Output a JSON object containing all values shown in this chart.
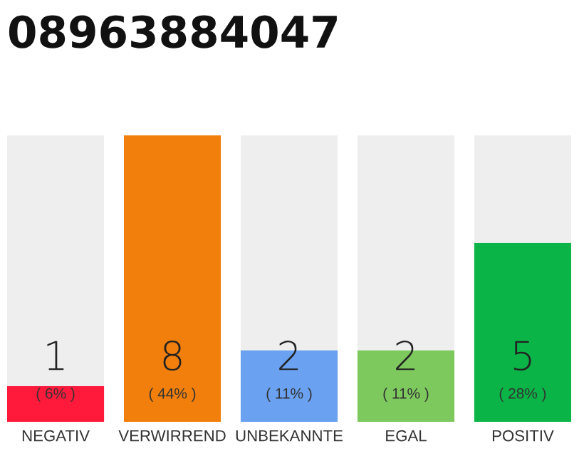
{
  "chart_data": {
    "type": "bar",
    "title": "08963884047",
    "stacked": true,
    "categories": [
      "NEGATIV",
      "VERWIRREND",
      "UNBEKANNTE",
      "EGAL",
      "POSITIV"
    ],
    "series": [
      {
        "colors": [
          "#ff1a3c",
          "#f27f0c",
          "#6aa1f0",
          "#7dc95e",
          "#0bb446"
        ],
        "values": [
          1,
          8,
          2,
          2,
          5
        ],
        "value_labels": [
          "1",
          "8",
          "2",
          "2",
          "5"
        ]
      },
      {
        "color": "#eeeeee",
        "values": [
          7,
          0,
          6,
          6,
          3
        ]
      }
    ],
    "ylim": [
      0,
      8
    ],
    "tick_labels": "x",
    "grid": false,
    "annotations": [
      "( 6% )",
      "( 44% )",
      "( 11% )",
      "( 11% )",
      "( 28% )"
    ]
  }
}
